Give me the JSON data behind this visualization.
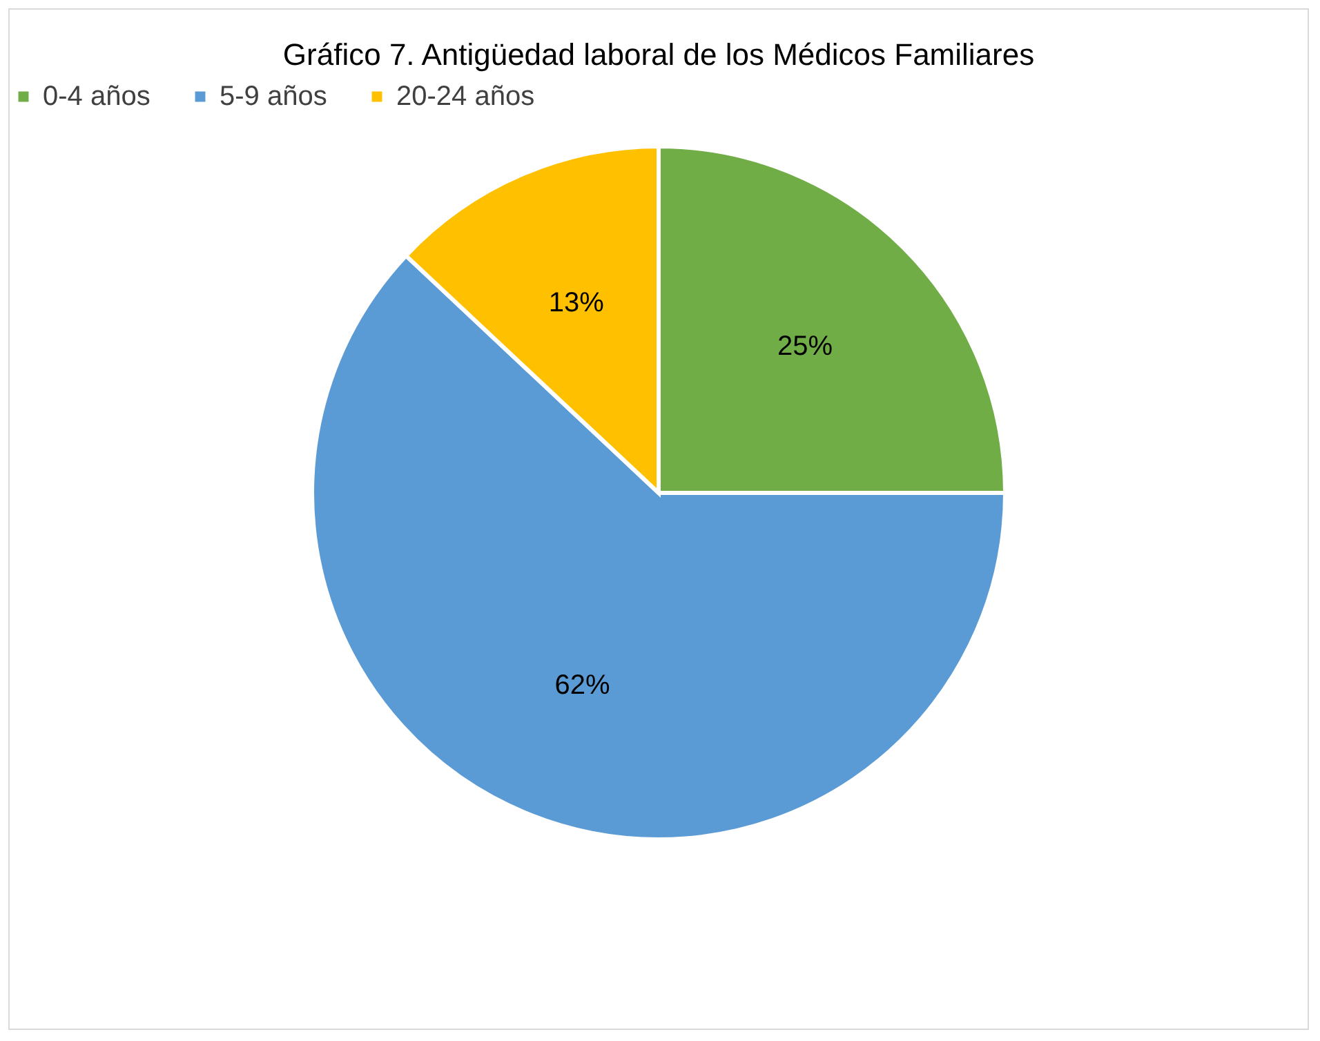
{
  "chart_data": {
    "type": "pie",
    "title": "Gráfico 7. Antigüedad laboral de los Médicos Familiares",
    "categories": [
      "0-4 años",
      "5-9 años",
      "20-24 años"
    ],
    "values": [
      25,
      62,
      13
    ],
    "colors": [
      "#70ad47",
      "#5b9bd5",
      "#ffc000"
    ],
    "value_labels": [
      "25%",
      "62%",
      "13%"
    ],
    "legend": "top"
  }
}
